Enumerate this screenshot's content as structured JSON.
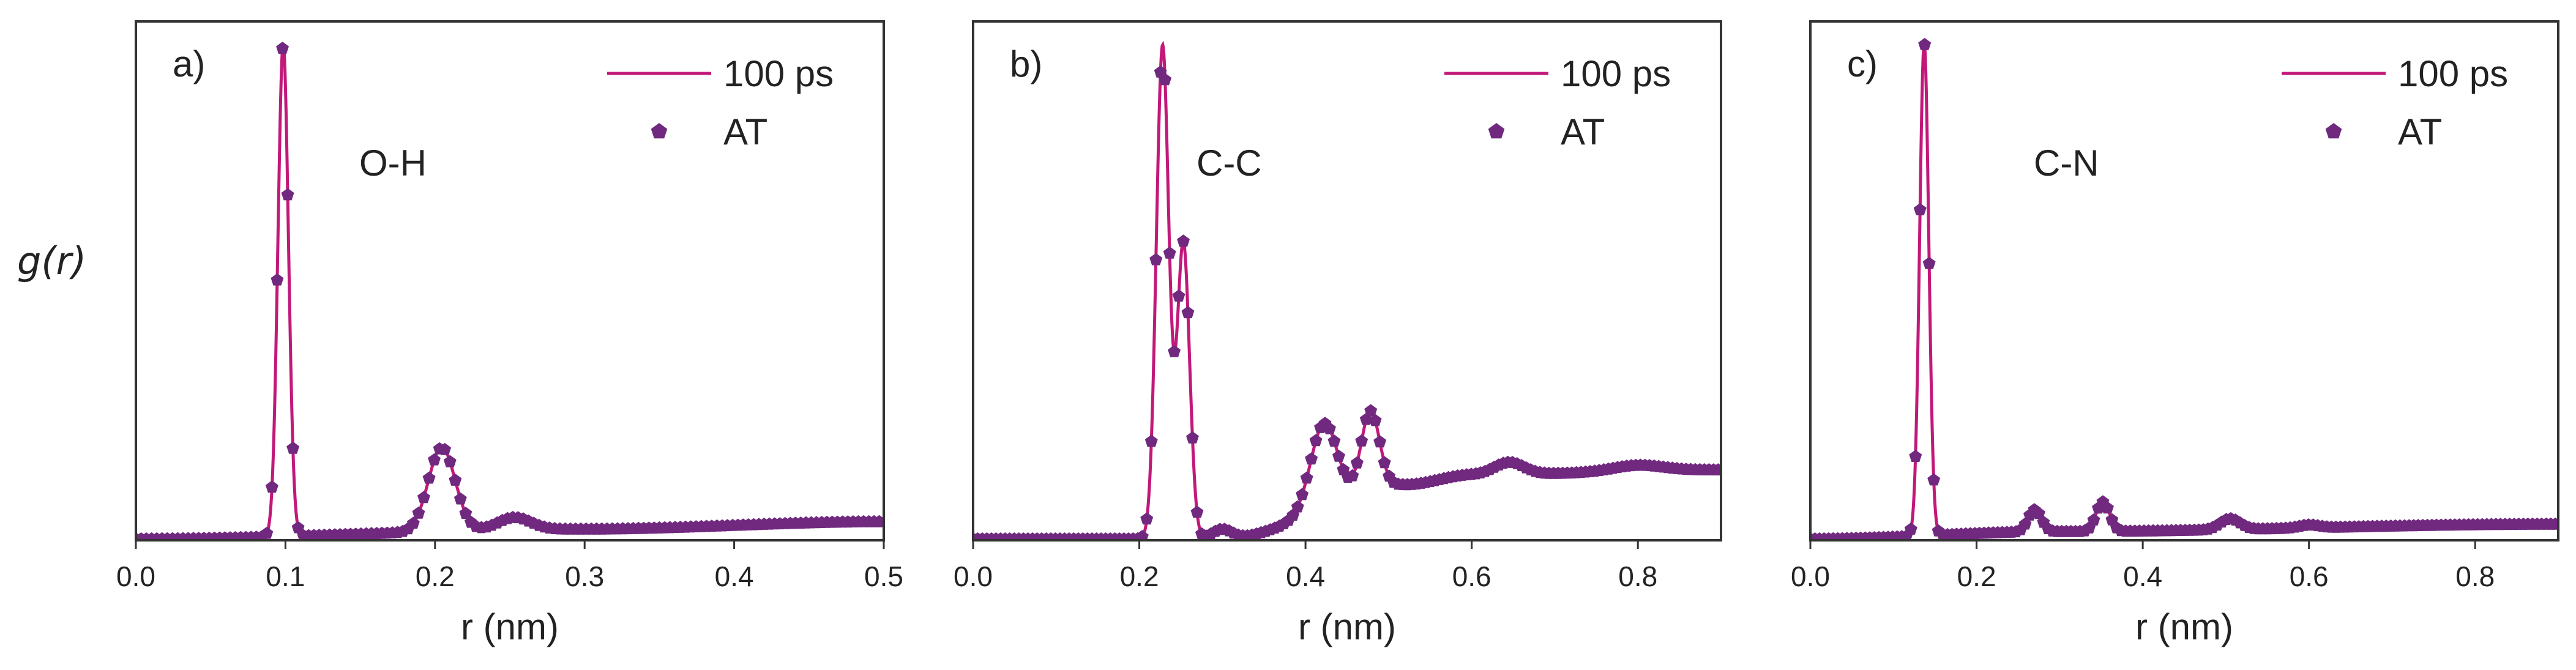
{
  "figure": {
    "ylabel": "g(r)"
  },
  "colors": {
    "line": "#c2187a",
    "marker": "#70297f",
    "frame": "#333333",
    "text": "#222222"
  },
  "chart_data": [
    {
      "type": "line",
      "panel_label": "a)",
      "annotation": "O-H",
      "xlabel": "r (nm)",
      "ylabel": "g(r)",
      "xlim": [
        0,
        0.5
      ],
      "ylim": [
        0,
        1
      ],
      "xticks": [
        0.0,
        0.1,
        0.2,
        0.3,
        0.4,
        0.5
      ],
      "xtick_labels": [
        "0.0",
        "0.1",
        "0.2",
        "0.3",
        "0.4",
        "0.5"
      ],
      "yticks_shown": false,
      "legend": [
        "100 ps",
        "AT"
      ],
      "legend_position": "top-right",
      "grid": false,
      "series": [
        {
          "name": "100 ps",
          "style": "line"
        },
        {
          "name": "AT",
          "style": "pentagon-markers"
        }
      ],
      "baseline": 0.0,
      "tail": [
        [
          0.0,
          0.0
        ],
        [
          0.3,
          0.02
        ],
        [
          0.5,
          0.035
        ]
      ],
      "peaks": [
        {
          "center": 0.0985,
          "height": 1.0,
          "width": 0.0035
        },
        {
          "center": 0.2045,
          "height": 0.17,
          "width": 0.009
        },
        {
          "center": 0.253,
          "height": 0.025,
          "width": 0.011
        }
      ],
      "marker_step": 0.0035
    },
    {
      "type": "line",
      "panel_label": "b)",
      "annotation": "C-C",
      "xlabel": "r (nm)",
      "ylabel": "g(r)",
      "xlim": [
        0,
        0.9
      ],
      "ylim": [
        0,
        1
      ],
      "xticks": [
        0.0,
        0.2,
        0.4,
        0.6,
        0.8
      ],
      "xtick_labels": [
        "0.0",
        "0.2",
        "0.4",
        "0.6",
        "0.8"
      ],
      "yticks_shown": false,
      "legend": [
        "100 ps",
        "AT"
      ],
      "legend_position": "top-right",
      "grid": false,
      "series": [
        {
          "name": "100 ps",
          "style": "line"
        },
        {
          "name": "AT",
          "style": "pentagon-markers"
        }
      ],
      "baseline": 0.0,
      "tail": [
        [
          0.0,
          0.0
        ],
        [
          0.3,
          0.0
        ],
        [
          0.52,
          0.11
        ],
        [
          0.6,
          0.13
        ],
        [
          0.9,
          0.14
        ]
      ],
      "peaks": [
        {
          "center": 0.228,
          "height": 1.0,
          "width": 0.0075
        },
        {
          "center": 0.253,
          "height": 0.6,
          "width": 0.0075
        },
        {
          "center": 0.3,
          "height": 0.02,
          "width": 0.012
        },
        {
          "center": 0.422,
          "height": 0.17,
          "width": 0.016
        },
        {
          "center": 0.478,
          "height": 0.16,
          "width": 0.011
        },
        {
          "center": 0.645,
          "height": 0.025,
          "width": 0.018
        },
        {
          "center": 0.72,
          "height": 0.0,
          "width": 0.02
        },
        {
          "center": 0.8,
          "height": 0.012,
          "width": 0.03
        }
      ],
      "marker_step": 0.0055
    },
    {
      "type": "line",
      "panel_label": "c)",
      "annotation": "C-N",
      "xlabel": "r (nm)",
      "ylabel": "g(r)",
      "xlim": [
        0,
        0.9
      ],
      "ylim": [
        0,
        1
      ],
      "xticks": [
        0.0,
        0.2,
        0.4,
        0.6,
        0.8
      ],
      "xtick_labels": [
        "0.0",
        "0.2",
        "0.4",
        "0.6",
        "0.8"
      ],
      "yticks_shown": false,
      "legend": [
        "100 ps",
        "AT"
      ],
      "legend_position": "top-right",
      "grid": false,
      "series": [
        {
          "name": "100 ps",
          "style": "line"
        },
        {
          "name": "AT",
          "style": "pentagon-markers"
        }
      ],
      "baseline": 0.0,
      "tail": [
        [
          0.0,
          0.0
        ],
        [
          0.3,
          0.015
        ],
        [
          0.9,
          0.03
        ]
      ],
      "peaks": [
        {
          "center": 0.137,
          "height": 1.0,
          "width": 0.0055
        },
        {
          "center": 0.27,
          "height": 0.045,
          "width": 0.008
        },
        {
          "center": 0.352,
          "height": 0.06,
          "width": 0.008
        },
        {
          "center": 0.505,
          "height": 0.022,
          "width": 0.012
        },
        {
          "center": 0.6,
          "height": 0.006,
          "width": 0.012
        }
      ],
      "marker_step": 0.0055
    }
  ]
}
